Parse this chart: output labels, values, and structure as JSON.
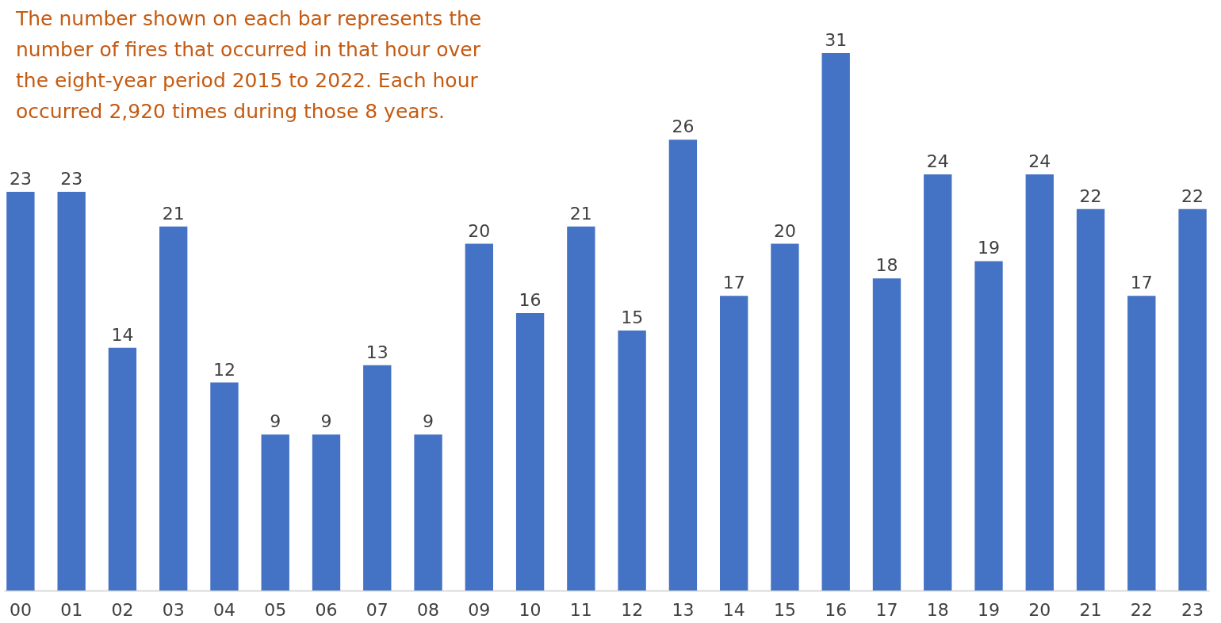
{
  "chart_data": {
    "type": "bar",
    "annotations": [
      "The number shown on each bar represents the number of fires that occurred in that hour over the eight-year period 2015 to 2022. Each hour occurred 2,920 times during those 8 years."
    ],
    "categories": [
      "00",
      "01",
      "02",
      "03",
      "04",
      "05",
      "06",
      "07",
      "08",
      "09",
      "10",
      "11",
      "12",
      "13",
      "14",
      "15",
      "16",
      "17",
      "18",
      "19",
      "20",
      "21",
      "22",
      "23"
    ],
    "values": [
      23,
      23,
      14,
      21,
      12,
      9,
      9,
      13,
      9,
      20,
      16,
      21,
      15,
      26,
      17,
      20,
      31,
      18,
      24,
      19,
      24,
      22,
      17,
      22
    ],
    "color": "#4472c4",
    "data_labels": true
  }
}
